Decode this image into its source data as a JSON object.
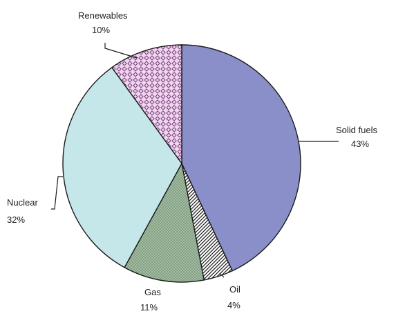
{
  "chart_data": {
    "type": "pie",
    "title": "",
    "start_angle_deg": 0,
    "direction": "clockwise",
    "slices": [
      {
        "label": "Solid fuels",
        "value": 43,
        "value_label": "43%",
        "color": "#8b8fc9",
        "pattern": "solid"
      },
      {
        "label": "Oil",
        "value": 4,
        "value_label": "4%",
        "color": "#ffffff",
        "pattern": "diagonal-hatch"
      },
      {
        "label": "Gas",
        "value": 11,
        "value_label": "11%",
        "color": "#a7bfa7",
        "pattern": "grid"
      },
      {
        "label": "Nuclear",
        "value": 32,
        "value_label": "32%",
        "color": "#c6e7ea",
        "pattern": "solid"
      },
      {
        "label": "Renewables",
        "value": 10,
        "value_label": "10%",
        "color": "#efd5ef",
        "pattern": "dots"
      }
    ]
  }
}
